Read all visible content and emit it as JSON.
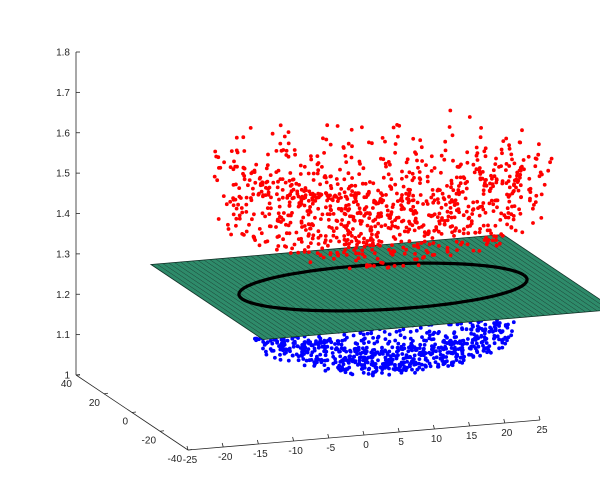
{
  "chart_data": {
    "type": "scatter",
    "projection": "3d",
    "title": "",
    "xlabel": "",
    "ylabel": "",
    "zlabel": "",
    "xlim": [
      -25,
      25
    ],
    "ylim": [
      -40,
      40
    ],
    "zlim": [
      1.0,
      1.8
    ],
    "x_ticks": [
      "-25",
      "-20",
      "-15",
      "-10",
      "-5",
      "0",
      "5",
      "10",
      "15",
      "20",
      "25"
    ],
    "y_ticks": [
      "-40",
      "-20",
      "0",
      "20",
      "40"
    ],
    "z_ticks": [
      "1",
      "1.1",
      "1.2",
      "1.3",
      "1.4",
      "1.5",
      "1.6",
      "1.7",
      "1.8"
    ],
    "grid": false,
    "legend": "none",
    "series": [
      {
        "kind": "scatter",
        "color": "#ff0000",
        "point_count_approx": 1000,
        "z_range": [
          1.25,
          1.69
        ],
        "shape": "bowl opening upward (higher z at larger radius)"
      },
      {
        "kind": "scatter",
        "color": "#0000ff",
        "point_count_approx": 1000,
        "z_range": [
          1.0,
          1.12
        ],
        "shape": "bowl opening upward (higher z at larger radius)"
      },
      {
        "kind": "plane",
        "color": "#2e8b6a",
        "z": 1.2,
        "x_range": [
          -25,
          25
        ],
        "y_range": [
          -40,
          40
        ]
      },
      {
        "kind": "circle",
        "color": "#000000",
        "z": 1.2,
        "center": [
          0,
          0
        ],
        "radius": 20
      }
    ]
  }
}
